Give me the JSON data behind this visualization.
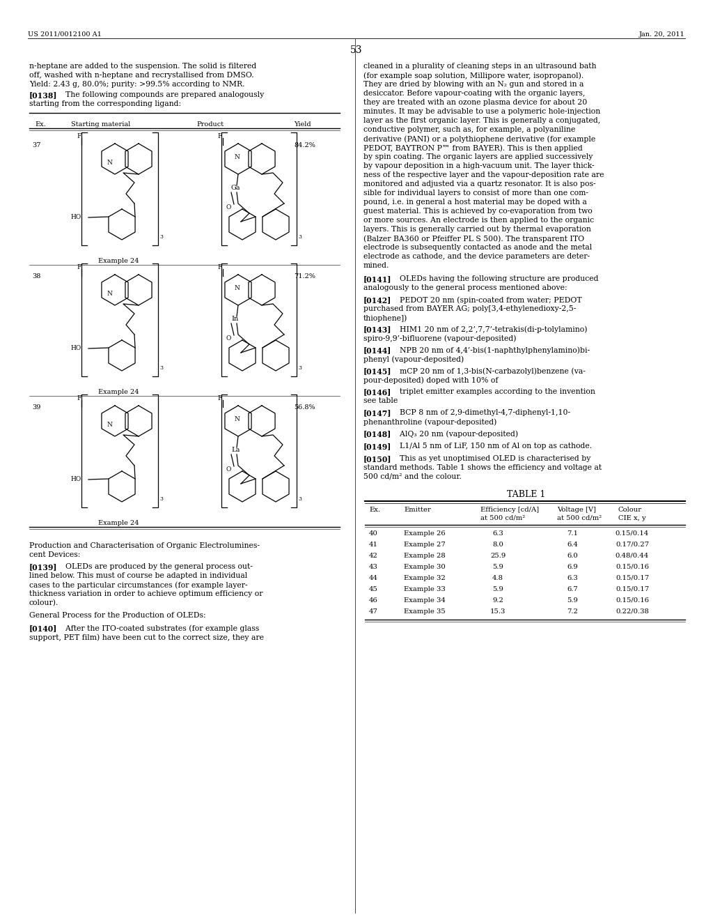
{
  "page_header_left": "US 2011/0012100 A1",
  "page_header_right": "Jan. 20, 2011",
  "page_number": "53",
  "bg_color": "#ffffff",
  "text_color": "#000000",
  "table1_header": [
    "Ex.",
    "Starting material",
    "Product",
    "Yield"
  ],
  "table1_rows": [
    {
      "ex": "37",
      "metal": "Ga",
      "yield": "84.2%"
    },
    {
      "ex": "38",
      "metal": "In",
      "yield": "71.2%"
    },
    {
      "ex": "39",
      "metal": "La",
      "yield": "56.8%"
    }
  ],
  "table2_title": "TABLE 1",
  "table2_headers": [
    "Ex.",
    "Emitter",
    "Efficiency [cd/A]\nat 500 cd/m²",
    "Voltage [V]\nat 500 cd/m²",
    "Colour\nCIE x, y"
  ],
  "table2_rows": [
    [
      "40",
      "Example 26",
      "6.3",
      "7.1",
      "0.15/0.14"
    ],
    [
      "41",
      "Example 27",
      "8.0",
      "6.4",
      "0.17/0.27"
    ],
    [
      "42",
      "Example 28",
      "25.9",
      "6.0",
      "0.48/0.44"
    ],
    [
      "43",
      "Example 30",
      "5.9",
      "6.9",
      "0.15/0.16"
    ],
    [
      "44",
      "Example 32",
      "4.8",
      "6.3",
      "0.15/0.17"
    ],
    [
      "45",
      "Example 33",
      "5.9",
      "6.7",
      "0.15/0.17"
    ],
    [
      "46",
      "Example 34",
      "9.2",
      "5.9",
      "0.15/0.16"
    ],
    [
      "47",
      "Example 35",
      "15.3",
      "7.2",
      "0.22/0.38"
    ]
  ],
  "fs_body": 7.8,
  "fs_small": 7.0,
  "fs_header": 9.5
}
